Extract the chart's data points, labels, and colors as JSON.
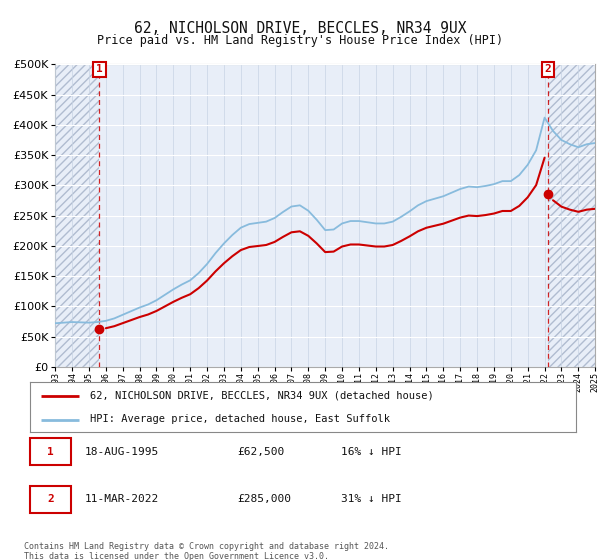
{
  "title": "62, NICHOLSON DRIVE, BECCLES, NR34 9UX",
  "subtitle": "Price paid vs. HM Land Registry's House Price Index (HPI)",
  "legend_line1": "62, NICHOLSON DRIVE, BECCLES, NR34 9UX (detached house)",
  "legend_line2": "HPI: Average price, detached house, East Suffolk",
  "annotation1_date": "18-AUG-1995",
  "annotation1_price": "£62,500",
  "annotation1_hpi": "16% ↓ HPI",
  "annotation2_date": "11-MAR-2022",
  "annotation2_price": "£285,000",
  "annotation2_hpi": "31% ↓ HPI",
  "footer": "Contains HM Land Registry data © Crown copyright and database right 2024.\nThis data is licensed under the Open Government Licence v3.0.",
  "ylim": [
    0,
    500000
  ],
  "yticks": [
    0,
    50000,
    100000,
    150000,
    200000,
    250000,
    300000,
    350000,
    400000,
    450000,
    500000
  ],
  "background_color": "#e8eef8",
  "hatch_color": "#b0bcd0",
  "grid_color": "#ffffff",
  "line_color_hpi": "#88bbdd",
  "line_color_price": "#cc0000",
  "dot_color": "#cc0000",
  "annotation_box_color": "#cc0000",
  "dashed_line_color": "#cc0000",
  "x_start_year": 1993,
  "x_end_year": 2025,
  "sale1_year": 1995.62,
  "sale2_year": 2022.19,
  "sale1_price": 62500,
  "sale2_price": 285000
}
